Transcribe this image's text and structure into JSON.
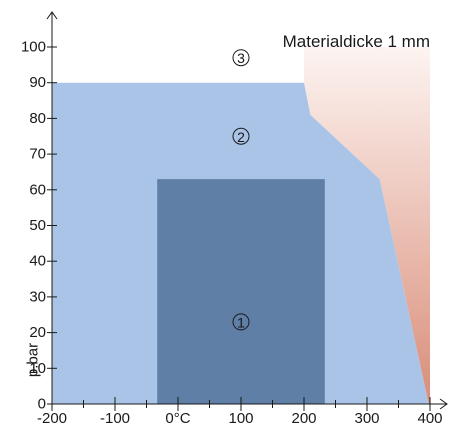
{
  "chart_data": {
    "type": "area",
    "title": "Materialdicke 1 mm",
    "xlabel": "",
    "ylabel": "p.bar",
    "xlim": [
      -200,
      400
    ],
    "ylim": [
      0,
      100
    ],
    "x_ticks": [
      -200,
      -100,
      0,
      100,
      200,
      300,
      400
    ],
    "x_tick_labels": [
      "-200",
      "-100",
      "0°C",
      "100",
      "200",
      "300",
      "400"
    ],
    "y_ticks": [
      0,
      10,
      20,
      30,
      40,
      50,
      60,
      70,
      80,
      90,
      100
    ],
    "y_tick_labels": [
      "0",
      "10",
      "20",
      "30",
      "40",
      "50",
      "60",
      "70",
      "80",
      "90",
      "100"
    ],
    "grid": false,
    "colors": {
      "zone1": "#5f7fa7",
      "zone2": "#aac4e8",
      "zone3_top": "#fdf4f1",
      "zone3_bottom": "#d98d79",
      "axis": "#1a1a1a"
    },
    "regions": [
      {
        "name": "1",
        "points": [
          [
            -33,
            0
          ],
          [
            233,
            0
          ],
          [
            233,
            63
          ],
          [
            -33,
            63
          ]
        ],
        "label_at": [
          100,
          23
        ]
      },
      {
        "name": "2",
        "points": [
          [
            -200,
            0
          ],
          [
            398,
            0
          ],
          [
            320,
            63
          ],
          [
            210,
            81
          ],
          [
            200,
            90
          ],
          [
            -200,
            90
          ]
        ],
        "label_at": [
          100,
          75
        ]
      },
      {
        "name": "3",
        "points": [
          [
            200,
            90
          ],
          [
            210,
            81
          ],
          [
            320,
            63
          ],
          [
            398,
            0
          ],
          [
            400,
            0
          ],
          [
            400,
            100
          ],
          [
            200,
            100
          ]
        ],
        "label_at": [
          100,
          97
        ]
      }
    ]
  }
}
